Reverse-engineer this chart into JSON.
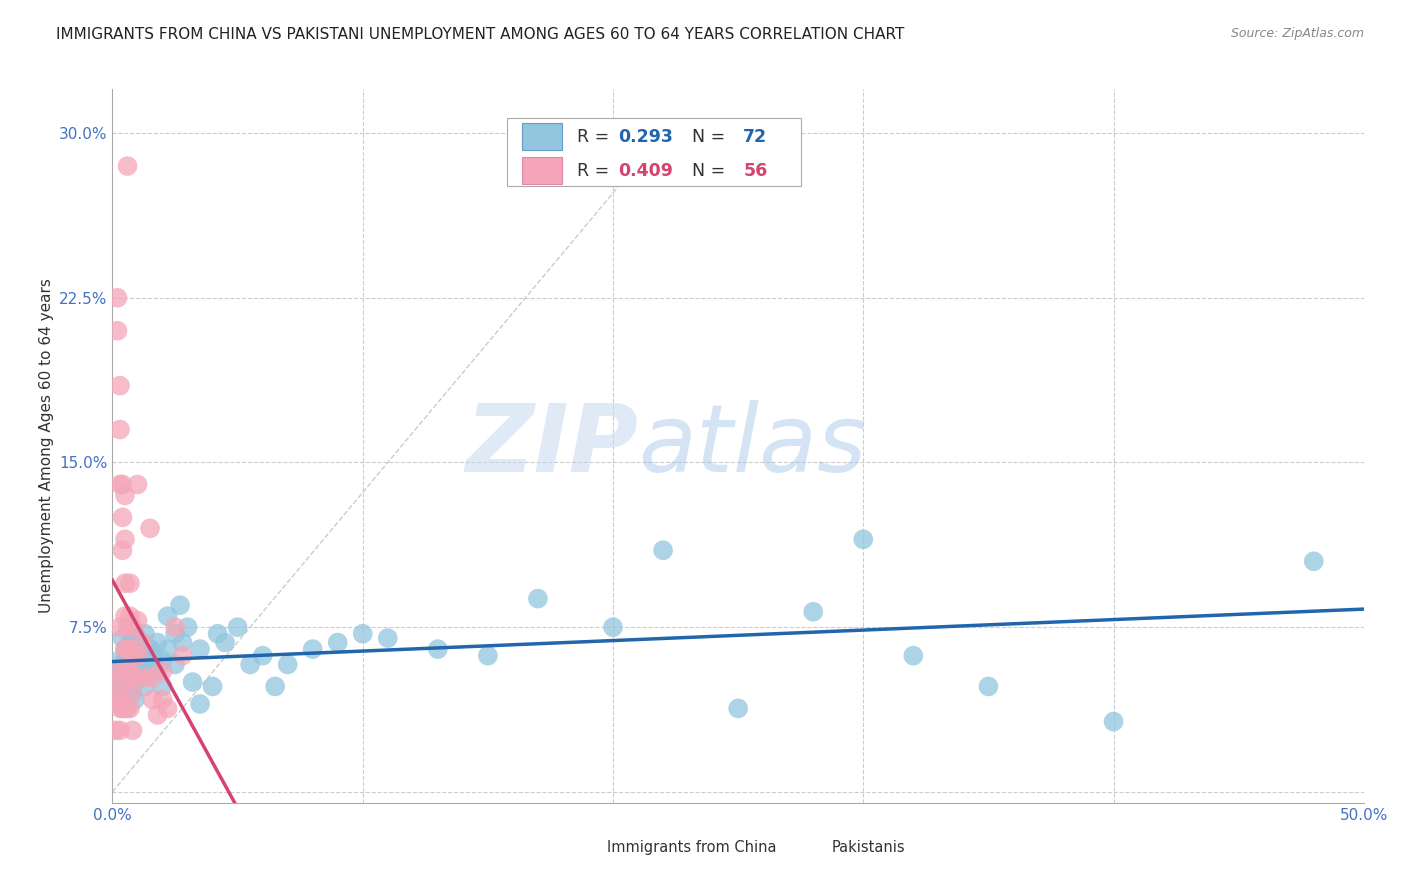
{
  "title": "IMMIGRANTS FROM CHINA VS PAKISTANI UNEMPLOYMENT AMONG AGES 60 TO 64 YEARS CORRELATION CHART",
  "source": "Source: ZipAtlas.com",
  "ylabel": "Unemployment Among Ages 60 to 64 years",
  "xlim": [
    0.0,
    0.5
  ],
  "ylim": [
    -0.005,
    0.32
  ],
  "xticks": [
    0.0,
    0.1,
    0.2,
    0.3,
    0.4,
    0.5
  ],
  "xticklabels": [
    "0.0%",
    "",
    "",
    "",
    "",
    "50.0%"
  ],
  "yticks": [
    0.0,
    0.075,
    0.15,
    0.225,
    0.3
  ],
  "yticklabels": [
    "",
    "7.5%",
    "15.0%",
    "22.5%",
    "30.0%"
  ],
  "blue_color": "#92c5de",
  "pink_color": "#f4a6b8",
  "blue_line_color": "#2166ac",
  "pink_line_color": "#d6436e",
  "blue_scatter": [
    [
      0.001,
      0.055
    ],
    [
      0.002,
      0.048
    ],
    [
      0.002,
      0.04
    ],
    [
      0.003,
      0.06
    ],
    [
      0.003,
      0.052
    ],
    [
      0.004,
      0.045
    ],
    [
      0.004,
      0.07
    ],
    [
      0.005,
      0.06
    ],
    [
      0.005,
      0.065
    ],
    [
      0.005,
      0.05
    ],
    [
      0.006,
      0.055
    ],
    [
      0.006,
      0.048
    ],
    [
      0.006,
      0.06
    ],
    [
      0.007,
      0.052
    ],
    [
      0.007,
      0.068
    ],
    [
      0.007,
      0.045
    ],
    [
      0.008,
      0.07
    ],
    [
      0.008,
      0.058
    ],
    [
      0.008,
      0.065
    ],
    [
      0.009,
      0.05
    ],
    [
      0.009,
      0.072
    ],
    [
      0.009,
      0.042
    ],
    [
      0.01,
      0.058
    ],
    [
      0.01,
      0.062
    ],
    [
      0.011,
      0.058
    ],
    [
      0.011,
      0.06
    ],
    [
      0.012,
      0.068
    ],
    [
      0.012,
      0.055
    ],
    [
      0.013,
      0.072
    ],
    [
      0.013,
      0.048
    ],
    [
      0.015,
      0.065
    ],
    [
      0.015,
      0.065
    ],
    [
      0.016,
      0.062
    ],
    [
      0.017,
      0.058
    ],
    [
      0.018,
      0.068
    ],
    [
      0.018,
      0.055
    ],
    [
      0.02,
      0.06
    ],
    [
      0.02,
      0.048
    ],
    [
      0.022,
      0.08
    ],
    [
      0.022,
      0.065
    ],
    [
      0.025,
      0.072
    ],
    [
      0.025,
      0.058
    ],
    [
      0.027,
      0.085
    ],
    [
      0.028,
      0.068
    ],
    [
      0.03,
      0.075
    ],
    [
      0.032,
      0.05
    ],
    [
      0.035,
      0.065
    ],
    [
      0.035,
      0.04
    ],
    [
      0.04,
      0.048
    ],
    [
      0.042,
      0.072
    ],
    [
      0.045,
      0.068
    ],
    [
      0.05,
      0.075
    ],
    [
      0.055,
      0.058
    ],
    [
      0.06,
      0.062
    ],
    [
      0.065,
      0.048
    ],
    [
      0.07,
      0.058
    ],
    [
      0.08,
      0.065
    ],
    [
      0.09,
      0.068
    ],
    [
      0.1,
      0.072
    ],
    [
      0.11,
      0.07
    ],
    [
      0.13,
      0.065
    ],
    [
      0.15,
      0.062
    ],
    [
      0.17,
      0.088
    ],
    [
      0.2,
      0.075
    ],
    [
      0.22,
      0.11
    ],
    [
      0.25,
      0.038
    ],
    [
      0.28,
      0.082
    ],
    [
      0.3,
      0.115
    ],
    [
      0.32,
      0.062
    ],
    [
      0.35,
      0.048
    ],
    [
      0.4,
      0.032
    ],
    [
      0.48,
      0.105
    ]
  ],
  "pink_scatter": [
    [
      0.001,
      0.055
    ],
    [
      0.001,
      0.05
    ],
    [
      0.002,
      0.225
    ],
    [
      0.002,
      0.21
    ],
    [
      0.003,
      0.185
    ],
    [
      0.003,
      0.165
    ],
    [
      0.003,
      0.14
    ],
    [
      0.003,
      0.075
    ],
    [
      0.004,
      0.14
    ],
    [
      0.004,
      0.125
    ],
    [
      0.004,
      0.11
    ],
    [
      0.004,
      0.048
    ],
    [
      0.005,
      0.135
    ],
    [
      0.005,
      0.115
    ],
    [
      0.005,
      0.095
    ],
    [
      0.005,
      0.08
    ],
    [
      0.005,
      0.065
    ],
    [
      0.005,
      0.055
    ],
    [
      0.006,
      0.285
    ],
    [
      0.006,
      0.075
    ],
    [
      0.006,
      0.065
    ],
    [
      0.006,
      0.055
    ],
    [
      0.007,
      0.095
    ],
    [
      0.007,
      0.08
    ],
    [
      0.007,
      0.065
    ],
    [
      0.007,
      0.055
    ],
    [
      0.008,
      0.075
    ],
    [
      0.008,
      0.062
    ],
    [
      0.008,
      0.052
    ],
    [
      0.008,
      0.045
    ],
    [
      0.009,
      0.062
    ],
    [
      0.009,
      0.052
    ],
    [
      0.01,
      0.14
    ],
    [
      0.01,
      0.078
    ],
    [
      0.01,
      0.062
    ],
    [
      0.012,
      0.068
    ],
    [
      0.013,
      0.052
    ],
    [
      0.015,
      0.12
    ],
    [
      0.016,
      0.052
    ],
    [
      0.016,
      0.042
    ],
    [
      0.018,
      0.035
    ],
    [
      0.02,
      0.055
    ],
    [
      0.02,
      0.042
    ],
    [
      0.022,
      0.038
    ],
    [
      0.025,
      0.075
    ],
    [
      0.028,
      0.062
    ],
    [
      0.002,
      0.042
    ],
    [
      0.003,
      0.042
    ],
    [
      0.003,
      0.038
    ],
    [
      0.004,
      0.038
    ],
    [
      0.005,
      0.038
    ],
    [
      0.006,
      0.038
    ],
    [
      0.007,
      0.038
    ],
    [
      0.008,
      0.028
    ],
    [
      0.001,
      0.028
    ],
    [
      0.003,
      0.028
    ]
  ],
  "watermark_zip": "ZIP",
  "watermark_atlas": "atlas",
  "background_color": "#ffffff",
  "grid_color": "#cccccc",
  "title_fontsize": 11,
  "axis_label_fontsize": 11,
  "tick_fontsize": 11
}
